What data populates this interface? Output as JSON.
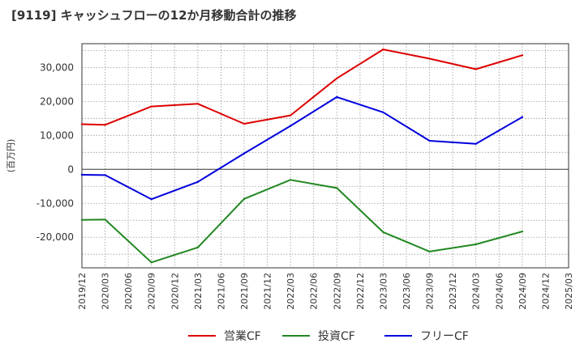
{
  "chart_data": {
    "type": "line",
    "title": "[9119]  キャッシュフローの12か月移動合計の推移",
    "ylabel": "(百万円)",
    "xlabel": "",
    "ylim": [
      -29000,
      37000
    ],
    "yticks": [
      -20000,
      -10000,
      0,
      10000,
      20000,
      30000
    ],
    "ytick_labels": [
      "-20,000",
      "-10,000",
      "0",
      "10,000",
      "20,000",
      "30,000"
    ],
    "x_tick_labels": [
      "2019/12",
      "2020/03",
      "2020/06",
      "2020/09",
      "2020/12",
      "2021/03",
      "2021/06",
      "2021/09",
      "2021/12",
      "2022/03",
      "2022/06",
      "2022/09",
      "2022/12",
      "2023/03",
      "2023/06",
      "2023/09",
      "2023/12",
      "2024/03",
      "2024/06",
      "2024/09",
      "2024/12",
      "2025/03"
    ],
    "grid": true,
    "legend_position": "bottom",
    "series": [
      {
        "name": "営業CF",
        "color": "#dd0000",
        "x": [
          "2019/12",
          "2020/03",
          "2020/09",
          "2021/03",
          "2021/09",
          "2022/03",
          "2022/09",
          "2023/03",
          "2023/09",
          "2024/03",
          "2024/09"
        ],
        "values": [
          13300,
          13100,
          18500,
          19300,
          13400,
          15900,
          26800,
          35300,
          32600,
          29500,
          33600
        ]
      },
      {
        "name": "投資CF",
        "color": "#228822",
        "x": [
          "2019/12",
          "2020/03",
          "2020/09",
          "2021/03",
          "2021/09",
          "2022/03",
          "2022/09",
          "2023/03",
          "2023/09",
          "2024/03",
          "2024/09"
        ],
        "values": [
          -14900,
          -14800,
          -27400,
          -23000,
          -8700,
          -3100,
          -5500,
          -18500,
          -24200,
          -22100,
          -18300
        ]
      },
      {
        "name": "フリーCF",
        "color": "#0000dd",
        "x": [
          "2019/12",
          "2020/03",
          "2020/09",
          "2021/03",
          "2021/09",
          "2022/03",
          "2022/09",
          "2023/03",
          "2023/09",
          "2024/03",
          "2024/09"
        ],
        "values": [
          -1600,
          -1700,
          -8800,
          -3700,
          4700,
          12800,
          21300,
          16800,
          8400,
          7500,
          15400
        ]
      }
    ]
  }
}
